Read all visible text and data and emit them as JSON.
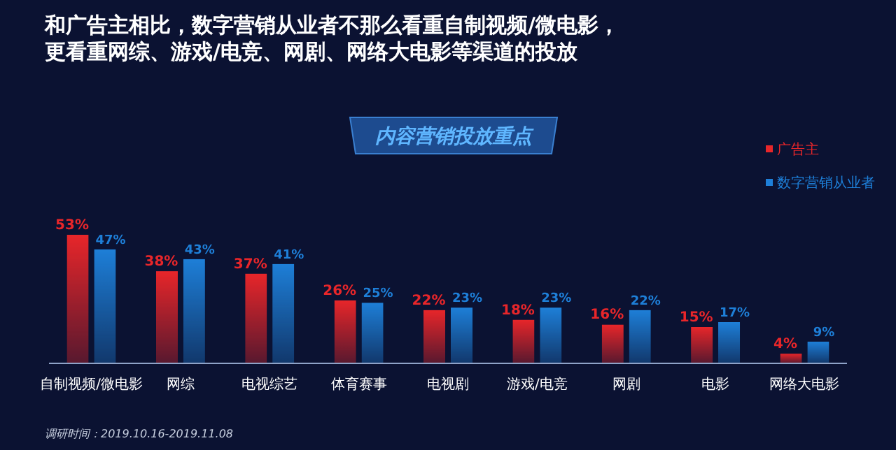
{
  "chart_data": {
    "type": "bar",
    "title": "和广告主相比，数字营销从业者不那么看重自制视频/微电影，更看重网综、游戏/电竞、网剧、网络大电影等渠道的投放",
    "subtitle": "内容营销投放重点",
    "annotations": [
      "调研时间：2019.10.16-2019.11.08"
    ],
    "categories": [
      "自制视频/微电影",
      "网综",
      "电视综艺",
      "体育赛事",
      "电视剧",
      "游戏/电竞",
      "网剧",
      "电影",
      "网络大电影"
    ],
    "series": [
      {
        "name": "广告主",
        "color": "#e8262a",
        "values": [
          53,
          38,
          37,
          26,
          22,
          18,
          16,
          15,
          4
        ],
        "value_labels": [
          "53%",
          "38%",
          "37%",
          "26%",
          "22%",
          "18%",
          "16%",
          "15%",
          "4%"
        ]
      },
      {
        "name": "数字营销从业者",
        "color": "#1e7fd8",
        "values": [
          47,
          43,
          41,
          25,
          23,
          23,
          22,
          17,
          9
        ],
        "value_labels": [
          "47%",
          "43%",
          "41%",
          "25%",
          "23%",
          "23%",
          "22%",
          "17%",
          "9%"
        ]
      }
    ],
    "legend": "right",
    "grid": false
  }
}
